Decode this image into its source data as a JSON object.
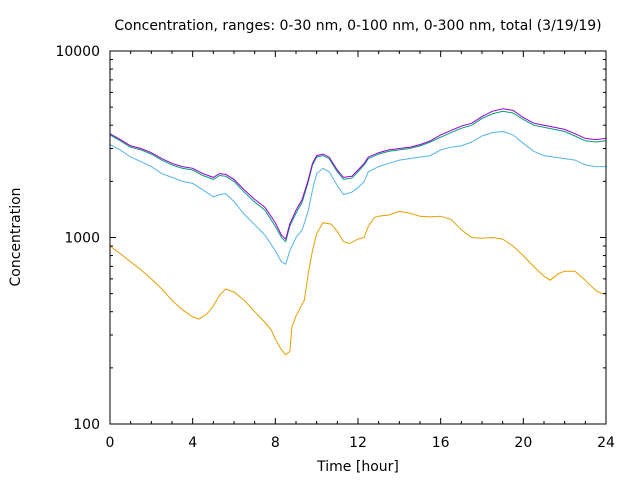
{
  "chart_data": {
    "type": "line",
    "title": "Concentration, ranges: 0-30 nm, 0-100 nm, 0-300 nm, total (3/19/19)",
    "xlabel": "Time [hour]",
    "ylabel": "Concentration",
    "xlim": [
      0,
      24
    ],
    "ylim": [
      100,
      10000
    ],
    "yscale": "log",
    "x_ticks": [
      0,
      4,
      8,
      12,
      16,
      20,
      24
    ],
    "y_ticks": [
      100,
      1000,
      10000
    ],
    "grid": false,
    "legend": "none",
    "series": [
      {
        "color": "#e69f00",
        "points": [
          [
            0,
            900
          ],
          [
            0.5,
            820
          ],
          [
            1,
            740
          ],
          [
            1.5,
            670
          ],
          [
            2,
            600
          ],
          [
            2.5,
            530
          ],
          [
            3,
            460
          ],
          [
            3.5,
            410
          ],
          [
            4,
            375
          ],
          [
            4.3,
            365
          ],
          [
            4.7,
            390
          ],
          [
            5,
            430
          ],
          [
            5.3,
            490
          ],
          [
            5.6,
            530
          ],
          [
            6,
            510
          ],
          [
            6.5,
            460
          ],
          [
            7,
            400
          ],
          [
            7.5,
            350
          ],
          [
            7.8,
            320
          ],
          [
            8,
            285
          ],
          [
            8.3,
            250
          ],
          [
            8.5,
            235
          ],
          [
            8.7,
            245
          ],
          [
            8.8,
            330
          ],
          [
            9,
            380
          ],
          [
            9.4,
            460
          ],
          [
            9.6,
            650
          ],
          [
            9.8,
            850
          ],
          [
            10,
            1050
          ],
          [
            10.3,
            1200
          ],
          [
            10.7,
            1180
          ],
          [
            11,
            1080
          ],
          [
            11.3,
            950
          ],
          [
            11.6,
            930
          ],
          [
            12,
            980
          ],
          [
            12.3,
            1000
          ],
          [
            12.5,
            1150
          ],
          [
            12.8,
            1280
          ],
          [
            13,
            1300
          ],
          [
            13.5,
            1320
          ],
          [
            14,
            1380
          ],
          [
            14.5,
            1350
          ],
          [
            15,
            1300
          ],
          [
            15.5,
            1290
          ],
          [
            16,
            1300
          ],
          [
            16.5,
            1250
          ],
          [
            17,
            1100
          ],
          [
            17.5,
            1000
          ],
          [
            18,
            990
          ],
          [
            18.5,
            1000
          ],
          [
            19,
            980
          ],
          [
            19.5,
            900
          ],
          [
            20,
            800
          ],
          [
            20.5,
            700
          ],
          [
            21,
            620
          ],
          [
            21.3,
            590
          ],
          [
            21.7,
            640
          ],
          [
            22,
            660
          ],
          [
            22.5,
            660
          ],
          [
            23,
            590
          ],
          [
            23.5,
            520
          ],
          [
            23.8,
            500
          ],
          [
            24,
            500
          ]
        ]
      },
      {
        "color": "#56b4e9",
        "points": [
          [
            0,
            3150
          ],
          [
            0.5,
            2950
          ],
          [
            1,
            2700
          ],
          [
            1.5,
            2550
          ],
          [
            2,
            2400
          ],
          [
            2.5,
            2200
          ],
          [
            3,
            2100
          ],
          [
            3.5,
            2000
          ],
          [
            4,
            1950
          ],
          [
            4.5,
            1800
          ],
          [
            5,
            1650
          ],
          [
            5.3,
            1700
          ],
          [
            5.6,
            1720
          ],
          [
            6,
            1560
          ],
          [
            6.5,
            1330
          ],
          [
            7,
            1170
          ],
          [
            7.5,
            1030
          ],
          [
            8,
            850
          ],
          [
            8.3,
            740
          ],
          [
            8.5,
            720
          ],
          [
            8.7,
            850
          ],
          [
            9,
            1000
          ],
          [
            9.3,
            1100
          ],
          [
            9.6,
            1400
          ],
          [
            9.8,
            1800
          ],
          [
            10,
            2200
          ],
          [
            10.3,
            2350
          ],
          [
            10.6,
            2250
          ],
          [
            11,
            1900
          ],
          [
            11.3,
            1700
          ],
          [
            11.7,
            1750
          ],
          [
            12,
            1850
          ],
          [
            12.3,
            2000
          ],
          [
            12.5,
            2250
          ],
          [
            13,
            2400
          ],
          [
            13.5,
            2500
          ],
          [
            14,
            2600
          ],
          [
            14.5,
            2650
          ],
          [
            15,
            2700
          ],
          [
            15.5,
            2750
          ],
          [
            16,
            2950
          ],
          [
            16.5,
            3050
          ],
          [
            17,
            3100
          ],
          [
            17.5,
            3250
          ],
          [
            18,
            3500
          ],
          [
            18.5,
            3650
          ],
          [
            19,
            3700
          ],
          [
            19.5,
            3550
          ],
          [
            20,
            3200
          ],
          [
            20.5,
            2900
          ],
          [
            21,
            2750
          ],
          [
            21.5,
            2700
          ],
          [
            22,
            2650
          ],
          [
            22.5,
            2600
          ],
          [
            23,
            2450
          ],
          [
            23.5,
            2400
          ],
          [
            24,
            2400
          ]
        ]
      },
      {
        "color": "#009e73",
        "points": [
          [
            0,
            3550
          ],
          [
            0.5,
            3300
          ],
          [
            1,
            3050
          ],
          [
            1.5,
            2950
          ],
          [
            2,
            2800
          ],
          [
            2.5,
            2600
          ],
          [
            3,
            2450
          ],
          [
            3.5,
            2350
          ],
          [
            4,
            2300
          ],
          [
            4.5,
            2150
          ],
          [
            5,
            2050
          ],
          [
            5.3,
            2150
          ],
          [
            5.6,
            2130
          ],
          [
            6,
            2000
          ],
          [
            6.5,
            1750
          ],
          [
            7,
            1550
          ],
          [
            7.5,
            1400
          ],
          [
            8,
            1150
          ],
          [
            8.3,
            1000
          ],
          [
            8.5,
            950
          ],
          [
            8.7,
            1150
          ],
          [
            9,
            1350
          ],
          [
            9.3,
            1550
          ],
          [
            9.6,
            2000
          ],
          [
            9.8,
            2450
          ],
          [
            10,
            2700
          ],
          [
            10.3,
            2750
          ],
          [
            10.6,
            2650
          ],
          [
            11,
            2250
          ],
          [
            11.3,
            2050
          ],
          [
            11.7,
            2080
          ],
          [
            12,
            2250
          ],
          [
            12.3,
            2450
          ],
          [
            12.5,
            2650
          ],
          [
            13,
            2800
          ],
          [
            13.5,
            2900
          ],
          [
            14,
            2950
          ],
          [
            14.5,
            3000
          ],
          [
            15,
            3100
          ],
          [
            15.5,
            3250
          ],
          [
            16,
            3450
          ],
          [
            16.5,
            3650
          ],
          [
            17,
            3850
          ],
          [
            17.5,
            4000
          ],
          [
            18,
            4350
          ],
          [
            18.5,
            4600
          ],
          [
            19,
            4750
          ],
          [
            19.5,
            4650
          ],
          [
            20,
            4300
          ],
          [
            20.5,
            4000
          ],
          [
            21,
            3900
          ],
          [
            21.5,
            3800
          ],
          [
            22,
            3700
          ],
          [
            22.5,
            3500
          ],
          [
            23,
            3300
          ],
          [
            23.5,
            3250
          ],
          [
            24,
            3300
          ]
        ]
      },
      {
        "color": "#9400d3",
        "points": [
          [
            0,
            3600
          ],
          [
            0.5,
            3350
          ],
          [
            1,
            3100
          ],
          [
            1.5,
            3000
          ],
          [
            2,
            2850
          ],
          [
            2.5,
            2650
          ],
          [
            3,
            2500
          ],
          [
            3.5,
            2400
          ],
          [
            4,
            2350
          ],
          [
            4.5,
            2200
          ],
          [
            5,
            2100
          ],
          [
            5.3,
            2200
          ],
          [
            5.6,
            2180
          ],
          [
            6,
            2050
          ],
          [
            6.5,
            1800
          ],
          [
            7,
            1600
          ],
          [
            7.5,
            1450
          ],
          [
            8,
            1200
          ],
          [
            8.3,
            1030
          ],
          [
            8.5,
            980
          ],
          [
            8.7,
            1180
          ],
          [
            9,
            1400
          ],
          [
            9.3,
            1600
          ],
          [
            9.6,
            2050
          ],
          [
            9.8,
            2500
          ],
          [
            10,
            2750
          ],
          [
            10.3,
            2800
          ],
          [
            10.6,
            2700
          ],
          [
            11,
            2300
          ],
          [
            11.3,
            2100
          ],
          [
            11.7,
            2130
          ],
          [
            12,
            2300
          ],
          [
            12.3,
            2500
          ],
          [
            12.5,
            2700
          ],
          [
            13,
            2850
          ],
          [
            13.5,
            2950
          ],
          [
            14,
            3000
          ],
          [
            14.5,
            3050
          ],
          [
            15,
            3150
          ],
          [
            15.5,
            3300
          ],
          [
            16,
            3550
          ],
          [
            16.5,
            3750
          ],
          [
            17,
            3950
          ],
          [
            17.5,
            4100
          ],
          [
            18,
            4450
          ],
          [
            18.5,
            4750
          ],
          [
            19,
            4900
          ],
          [
            19.5,
            4800
          ],
          [
            20,
            4400
          ],
          [
            20.5,
            4100
          ],
          [
            21,
            4000
          ],
          [
            21.5,
            3900
          ],
          [
            22,
            3800
          ],
          [
            22.5,
            3600
          ],
          [
            23,
            3400
          ],
          [
            23.5,
            3350
          ],
          [
            24,
            3400
          ]
        ]
      }
    ]
  }
}
